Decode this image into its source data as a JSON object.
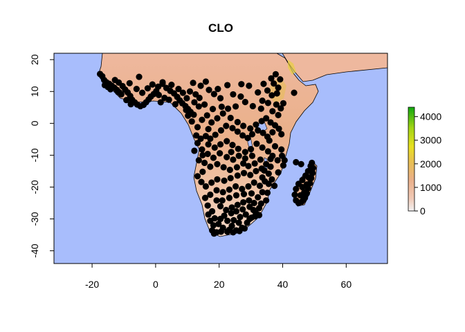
{
  "chart_data": {
    "type": "scatter",
    "title": "CLO",
    "xlabel": "",
    "ylabel": "",
    "xlim": [
      -32,
      73
    ],
    "ylim": [
      -44,
      22
    ],
    "x_ticks": [
      -20,
      0,
      20,
      40,
      60
    ],
    "y_ticks": [
      20,
      10,
      0,
      -10,
      -20,
      -30,
      -40
    ],
    "grid": false,
    "background": "raster elevation map of Africa",
    "ocean_color": "#a8bdfc",
    "colorbar": {
      "ticks": [
        0,
        1000,
        2000,
        3000,
        4000
      ],
      "range": [
        0,
        4400
      ],
      "colors": [
        "#f2f2f2",
        "#f0c9b6",
        "#eab08a",
        "#e8c050",
        "#e8e020",
        "#a2d414",
        "#10a810"
      ]
    },
    "marker_color": "#000000",
    "points": [
      [
        -17.5,
        15.5
      ],
      [
        -16.8,
        14.8
      ],
      [
        -16.2,
        13.6
      ],
      [
        -15.5,
        12.9
      ],
      [
        -14.6,
        12.4
      ],
      [
        -13.8,
        11.8
      ],
      [
        -13.0,
        11.2
      ],
      [
        -12.2,
        10.5
      ],
      [
        -11.5,
        9.8
      ],
      [
        -10.8,
        9.1
      ],
      [
        -16.0,
        12.0
      ],
      [
        -15.0,
        11.4
      ],
      [
        -14.2,
        10.7
      ],
      [
        -12.8,
        13.6
      ],
      [
        -11.6,
        12.8
      ],
      [
        -10.4,
        11.7
      ],
      [
        -9.6,
        10.6
      ],
      [
        -8.8,
        9.7
      ],
      [
        -8.0,
        8.6
      ],
      [
        -7.4,
        7.4
      ],
      [
        -6.6,
        6.6
      ],
      [
        -5.8,
        5.9
      ],
      [
        -4.8,
        5.4
      ],
      [
        -3.8,
        5.8
      ],
      [
        -3.0,
        6.6
      ],
      [
        -2.2,
        7.5
      ],
      [
        -1.5,
        8.4
      ],
      [
        -0.6,
        9.2
      ],
      [
        0.2,
        10.1
      ],
      [
        1.0,
        8.9
      ],
      [
        -9.2,
        7.3
      ],
      [
        -7.8,
        6.0
      ],
      [
        -11.8,
        9.8
      ],
      [
        -8.2,
        12.6
      ],
      [
        -6.0,
        10.8
      ],
      [
        -4.2,
        9.6
      ],
      [
        -2.5,
        11.0
      ],
      [
        -1.0,
        12.2
      ],
      [
        0.8,
        11.5
      ],
      [
        2.2,
        12.9
      ],
      [
        -5.2,
        14.6
      ],
      [
        3.4,
        11.1
      ],
      [
        4.6,
        10.2
      ],
      [
        5.8,
        9.4
      ],
      [
        6.8,
        8.3
      ],
      [
        7.6,
        7.2
      ],
      [
        8.4,
        6.3
      ],
      [
        9.4,
        5.4
      ],
      [
        10.2,
        4.5
      ],
      [
        11.0,
        3.6
      ],
      [
        5.0,
        12.1
      ],
      [
        7.2,
        10.8
      ],
      [
        8.6,
        9.6
      ],
      [
        10.8,
        10.0
      ],
      [
        12.6,
        9.1
      ],
      [
        13.8,
        8.0
      ],
      [
        12.2,
        6.6
      ],
      [
        13.6,
        5.3
      ],
      [
        9.8,
        7.9
      ],
      [
        2.8,
        8.0
      ],
      [
        1.6,
        6.6
      ],
      [
        4.2,
        7.4
      ],
      [
        6.2,
        6.0
      ],
      [
        2.2,
        12.4
      ],
      [
        11.8,
        12.7
      ],
      [
        14.2,
        11.8
      ],
      [
        15.8,
        13.1
      ],
      [
        16.8,
        10.5
      ],
      [
        18.4,
        9.2
      ],
      [
        19.6,
        10.8
      ],
      [
        20.4,
        7.9
      ],
      [
        22.6,
        12.0
      ],
      [
        24.4,
        9.1
      ],
      [
        26.8,
        8.4
      ],
      [
        28.2,
        6.7
      ],
      [
        30.6,
        5.4
      ],
      [
        32.2,
        9.7
      ],
      [
        33.6,
        7.1
      ],
      [
        35.2,
        10.3
      ],
      [
        36.6,
        8.8
      ],
      [
        37.2,
        12.5
      ],
      [
        38.6,
        11.2
      ],
      [
        39.2,
        13.8
      ],
      [
        37.8,
        15.4
      ],
      [
        36.4,
        14.1
      ],
      [
        34.0,
        12.4
      ],
      [
        38.0,
        5.9
      ],
      [
        39.4,
        4.7
      ],
      [
        36.8,
        3.8
      ],
      [
        38.6,
        2.6
      ],
      [
        40.2,
        6.3
      ],
      [
        38.2,
        9.4
      ],
      [
        35.4,
        6.4
      ],
      [
        33.2,
        4.6
      ],
      [
        43.6,
        9.6
      ],
      [
        29.4,
        11.8
      ],
      [
        27.0,
        12.3
      ],
      [
        25.2,
        5.3
      ],
      [
        22.8,
        4.6
      ],
      [
        21.2,
        3.1
      ],
      [
        23.6,
        1.7
      ],
      [
        25.8,
        0.4
      ],
      [
        27.6,
        -0.8
      ],
      [
        29.8,
        -1.6
      ],
      [
        31.6,
        -0.4
      ],
      [
        33.4,
        0.7
      ],
      [
        34.8,
        1.6
      ],
      [
        36.2,
        0.3
      ],
      [
        37.6,
        -0.6
      ],
      [
        38.8,
        -1.7
      ],
      [
        39.6,
        -3.4
      ],
      [
        36.8,
        -2.8
      ],
      [
        35.2,
        -4.2
      ],
      [
        33.8,
        -3.0
      ],
      [
        32.2,
        -2.2
      ],
      [
        30.4,
        -3.4
      ],
      [
        29.0,
        -4.6
      ],
      [
        27.4,
        -3.8
      ],
      [
        25.8,
        -2.6
      ],
      [
        24.2,
        -1.5
      ],
      [
        22.2,
        -0.8
      ],
      [
        20.6,
        -2.2
      ],
      [
        18.8,
        -3.6
      ],
      [
        17.2,
        -4.8
      ],
      [
        15.8,
        -4.0
      ],
      [
        14.2,
        -4.8
      ],
      [
        12.8,
        -3.8
      ],
      [
        13.2,
        -1.2
      ],
      [
        11.4,
        0.6
      ],
      [
        10.2,
        2.4
      ],
      [
        9.6,
        4.2
      ],
      [
        12.0,
        2.7
      ],
      [
        14.6,
        1.1
      ],
      [
        16.2,
        2.5
      ],
      [
        17.6,
        0.3
      ],
      [
        19.4,
        1.6
      ],
      [
        18.0,
        4.5
      ],
      [
        15.4,
        5.9
      ],
      [
        20.8,
        5.2
      ],
      [
        16.6,
        -1.8
      ],
      [
        13.2,
        -6.2
      ],
      [
        14.6,
        -8.2
      ],
      [
        16.4,
        -9.6
      ],
      [
        18.2,
        -10.8
      ],
      [
        20.2,
        -9.4
      ],
      [
        22.4,
        -10.6
      ],
      [
        24.4,
        -11.4
      ],
      [
        26.2,
        -10.2
      ],
      [
        28.2,
        -9.0
      ],
      [
        30.0,
        -8.1
      ],
      [
        31.8,
        -6.4
      ],
      [
        33.6,
        -7.6
      ],
      [
        35.4,
        -8.8
      ],
      [
        36.8,
        -10.2
      ],
      [
        38.4,
        -11.6
      ],
      [
        39.8,
        -10.2
      ],
      [
        37.6,
        -7.2
      ],
      [
        35.8,
        -5.4
      ],
      [
        33.0,
        -11.4
      ],
      [
        31.2,
        -12.6
      ],
      [
        29.2,
        -13.4
      ],
      [
        27.6,
        -12.6
      ],
      [
        25.6,
        -13.8
      ],
      [
        23.4,
        -14.6
      ],
      [
        21.4,
        -13.8
      ],
      [
        19.4,
        -12.8
      ],
      [
        17.2,
        -13.6
      ],
      [
        15.4,
        -12.4
      ],
      [
        13.6,
        -11.6
      ],
      [
        14.8,
        -15.2
      ],
      [
        13.2,
        -16.6
      ],
      [
        14.4,
        -18.4
      ],
      [
        15.8,
        -19.8
      ],
      [
        17.6,
        -18.6
      ],
      [
        19.4,
        -17.6
      ],
      [
        21.6,
        -18.0
      ],
      [
        23.6,
        -17.2
      ],
      [
        25.8,
        -16.4
      ],
      [
        27.8,
        -15.6
      ],
      [
        29.8,
        -16.2
      ],
      [
        31.6,
        -15.0
      ],
      [
        33.4,
        -14.2
      ],
      [
        34.8,
        -12.8
      ],
      [
        35.6,
        -15.8
      ],
      [
        34.4,
        -18.2
      ],
      [
        32.8,
        -19.6
      ],
      [
        31.0,
        -18.6
      ],
      [
        29.2,
        -19.8
      ],
      [
        27.2,
        -20.6
      ],
      [
        25.2,
        -19.8
      ],
      [
        23.2,
        -20.8
      ],
      [
        21.2,
        -21.6
      ],
      [
        19.2,
        -21.0
      ],
      [
        17.2,
        -22.4
      ],
      [
        15.6,
        -23.4
      ],
      [
        16.4,
        -25.8
      ],
      [
        17.8,
        -27.6
      ],
      [
        18.6,
        -29.8
      ],
      [
        19.8,
        -31.6
      ],
      [
        21.2,
        -32.8
      ],
      [
        23.2,
        -33.4
      ],
      [
        25.4,
        -33.6
      ],
      [
        27.2,
        -32.8
      ],
      [
        28.8,
        -31.2
      ],
      [
        30.2,
        -29.6
      ],
      [
        31.6,
        -28.2
      ],
      [
        32.6,
        -26.6
      ],
      [
        31.0,
        -25.0
      ],
      [
        29.4,
        -24.2
      ],
      [
        27.6,
        -24.8
      ],
      [
        25.8,
        -25.6
      ],
      [
        24.0,
        -26.4
      ],
      [
        22.2,
        -27.2
      ],
      [
        20.4,
        -26.0
      ],
      [
        19.2,
        -24.2
      ],
      [
        21.0,
        -24.2
      ],
      [
        23.2,
        -23.4
      ],
      [
        25.4,
        -22.6
      ],
      [
        27.8,
        -22.2
      ],
      [
        30.2,
        -22.0
      ],
      [
        32.2,
        -23.2
      ],
      [
        33.6,
        -21.6
      ],
      [
        35.2,
        -21.8
      ],
      [
        34.8,
        -24.2
      ],
      [
        33.2,
        -25.2
      ],
      [
        30.8,
        -27.2
      ],
      [
        28.4,
        -28.6
      ],
      [
        26.6,
        -29.4
      ],
      [
        24.6,
        -30.4
      ],
      [
        22.6,
        -30.6
      ],
      [
        20.4,
        -30.0
      ],
      [
        18.2,
        -32.0
      ],
      [
        19.2,
        -34.2
      ],
      [
        20.6,
        -34.0
      ],
      [
        22.6,
        -34.0
      ],
      [
        24.4,
        -34.2
      ],
      [
        26.4,
        -33.8
      ],
      [
        28.0,
        -33.0
      ],
      [
        17.8,
        -33.6
      ],
      [
        18.4,
        -34.6
      ],
      [
        16.6,
        -28.6
      ],
      [
        17.2,
        -30.6
      ],
      [
        21.6,
        -29.0
      ],
      [
        23.8,
        -28.2
      ],
      [
        25.4,
        -27.6
      ],
      [
        27.4,
        -27.0
      ],
      [
        29.6,
        -26.2
      ],
      [
        26.2,
        -31.2
      ],
      [
        24.0,
        -32.2
      ],
      [
        29.6,
        -30.0
      ],
      [
        31.2,
        -29.2
      ],
      [
        33.6,
        -17.0
      ],
      [
        36.6,
        -17.6
      ],
      [
        38.6,
        -15.4
      ],
      [
        40.2,
        -13.2
      ],
      [
        39.6,
        -8.2
      ],
      [
        40.6,
        -11.6
      ],
      [
        36.2,
        -13.6
      ],
      [
        37.4,
        -19.6
      ],
      [
        35.6,
        -19.0
      ],
      [
        30.4,
        -10.2
      ],
      [
        28.2,
        -11.0
      ],
      [
        26.0,
        -8.0
      ],
      [
        24.2,
        -6.8
      ],
      [
        22.4,
        -5.6
      ],
      [
        20.4,
        -6.6
      ],
      [
        18.6,
        -7.6
      ],
      [
        16.6,
        -6.6
      ],
      [
        14.8,
        -10.0
      ],
      [
        23.8,
        -9.0
      ],
      [
        44.2,
        -12.2
      ],
      [
        45.8,
        -12.8
      ],
      [
        49.2,
        -12.4
      ],
      [
        49.6,
        -14.0
      ],
      [
        49.4,
        -15.6
      ],
      [
        49.0,
        -17.2
      ],
      [
        48.6,
        -18.8
      ],
      [
        48.0,
        -20.4
      ],
      [
        47.6,
        -22.0
      ],
      [
        47.0,
        -23.4
      ],
      [
        46.0,
        -24.6
      ],
      [
        45.0,
        -25.0
      ],
      [
        44.2,
        -24.2
      ],
      [
        43.8,
        -22.4
      ],
      [
        44.2,
        -20.6
      ],
      [
        45.0,
        -19.0
      ],
      [
        46.2,
        -17.8
      ],
      [
        47.2,
        -16.4
      ],
      [
        48.0,
        -15.0
      ],
      [
        48.8,
        -13.4
      ],
      [
        46.2,
        -20.0
      ],
      [
        46.8,
        -21.6
      ],
      [
        47.6,
        -19.2
      ],
      [
        45.6,
        -22.6
      ],
      [
        46.6,
        -24.0
      ],
      [
        48.2,
        -17.0
      ],
      [
        32.6,
        -28.8
      ],
      [
        34.2,
        -14.8
      ],
      [
        36.2,
        -11.2
      ],
      [
        12.2,
        -8.6
      ]
    ]
  }
}
